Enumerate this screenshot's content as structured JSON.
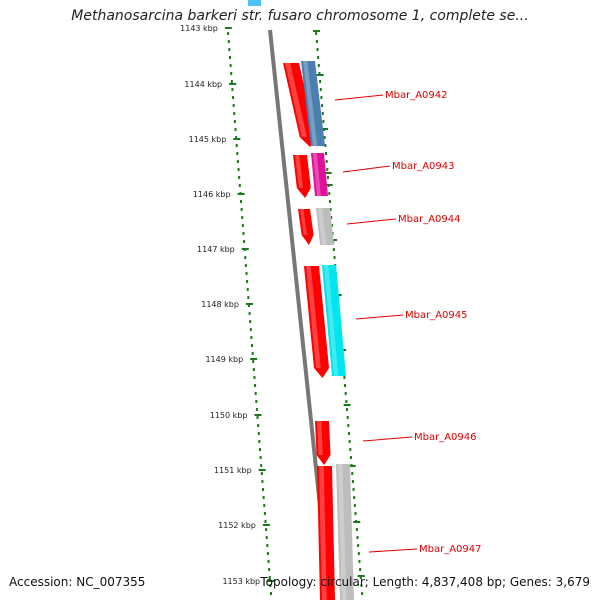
{
  "title": "Methanosarcina barkeri str. fusaro chromosome 1, complete se...",
  "footer": {
    "accession": "Accession: NC_007355",
    "topology": "Topology: circular; Length: 4,837,408 bp; Genes: 3,679"
  },
  "ticks": [
    "1143 kbp",
    "1144 kbp",
    "1145 kbp",
    "1146 kbp",
    "1147 kbp",
    "1148 kbp",
    "1149 kbp",
    "1150 kbp",
    "1151 kbp",
    "1152 kbp",
    "1153 kbp"
  ],
  "genes": [
    {
      "label": "Mbar_A0942",
      "cds_color": "#ff0000",
      "gene_color": "#4a7fb0"
    },
    {
      "label": "Mbar_A0943",
      "cds_color": "#ff0000",
      "gene_color": "#e0109a"
    },
    {
      "label": "Mbar_A0944",
      "cds_color": "#ff0000",
      "gene_color": "#bdbdbd"
    },
    {
      "label": "Mbar_A0945",
      "cds_color": "#ff0000",
      "gene_color": "#00e5ee"
    },
    {
      "label": "Mbar_A0946",
      "cds_color": "#ff0000",
      "gene_color": ""
    },
    {
      "label": "Mbar_A0947",
      "cds_color": "#ff0000",
      "gene_color": "#bdbdbd"
    }
  ],
  "colors": {
    "backbone": "#777777",
    "tick": "#1a7a1a",
    "label_line": "#e00000"
  }
}
